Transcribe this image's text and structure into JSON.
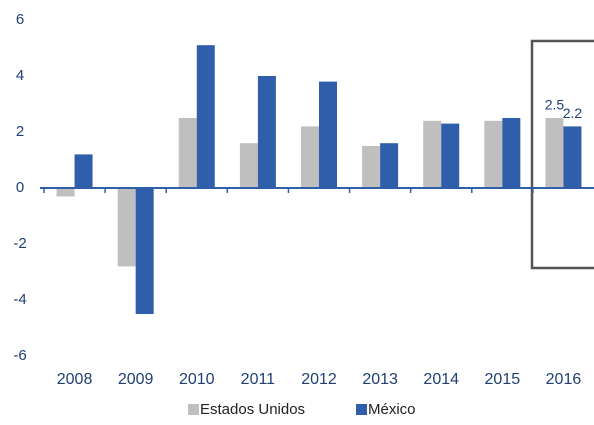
{
  "chart_data": {
    "type": "bar",
    "categories": [
      "2008",
      "2009",
      "2010",
      "2011",
      "2012",
      "2013",
      "2014",
      "2015",
      "2016"
    ],
    "series": [
      {
        "name": "Estados Unidos",
        "color": "#bfbfbf",
        "values": [
          -0.3,
          -2.8,
          2.5,
          1.6,
          2.2,
          1.5,
          2.4,
          2.4,
          2.5
        ],
        "value_labels": [
          null,
          null,
          null,
          null,
          null,
          null,
          null,
          null,
          "2.5"
        ]
      },
      {
        "name": "México",
        "color": "#2f5faa",
        "values": [
          1.2,
          -4.5,
          5.1,
          4.0,
          3.8,
          1.6,
          2.3,
          2.5,
          2.2
        ],
        "value_labels": [
          null,
          null,
          null,
          null,
          null,
          null,
          null,
          null,
          "2.2"
        ]
      }
    ],
    "ylim": [
      -6,
      6
    ],
    "yticks": [
      -6,
      -4,
      -2,
      0,
      2,
      4,
      6
    ],
    "grid": false,
    "legend": "bottom"
  }
}
